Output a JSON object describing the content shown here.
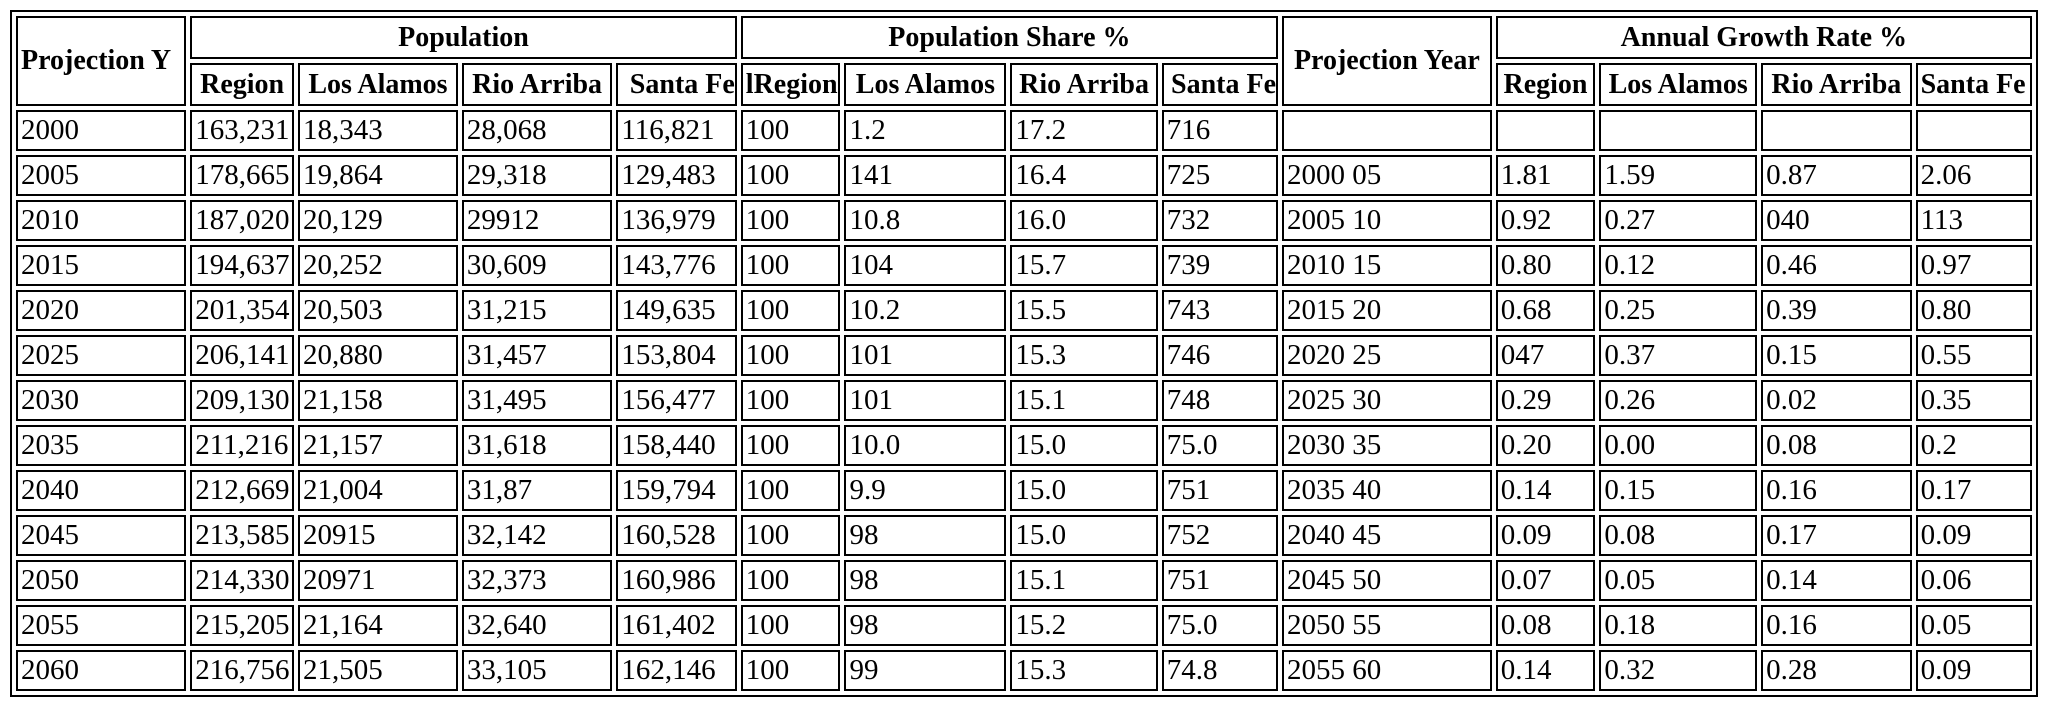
{
  "table": {
    "group_headers": {
      "projection_year_left": "Projection Y",
      "population": "Population",
      "population_share": "Population Share %",
      "projection_year_right": "Projection Year",
      "annual_growth": "Annual Growth Rate %"
    },
    "sub_headers": {
      "population": [
        "Region",
        "Los Alamos",
        "Rio Arriba",
        "Santa Fe"
      ],
      "population_share": [
        "lRegion",
        "Los Alamos",
        "Rio Arriba",
        "Santa Fe"
      ],
      "annual_growth": [
        "Region",
        "Los Alamos",
        "Rio Arriba",
        "Santa Fe"
      ]
    },
    "rows": [
      [
        "2000",
        "163,231",
        "18,343",
        "28,068",
        "116,821",
        "100",
        "1.2",
        "17.2",
        "716",
        "",
        "",
        "",
        "",
        ""
      ],
      [
        "2005",
        "178,665",
        "19,864",
        "29,318",
        "129,483",
        "100",
        "141",
        "16.4",
        "725",
        "2000 05",
        "1.81",
        "1.59",
        "0.87",
        "2.06"
      ],
      [
        "2010",
        "187,020",
        "20,129",
        "29912",
        "136,979",
        "100",
        "10.8",
        "16.0",
        "732",
        "2005 10",
        "0.92",
        "0.27",
        "040",
        "113"
      ],
      [
        "2015",
        "194,637",
        "20,252",
        "30,609",
        "143,776",
        "100",
        "104",
        "15.7",
        "739",
        "2010 15",
        "0.80",
        "0.12",
        "0.46",
        "0.97"
      ],
      [
        "2020",
        "201,354",
        "20,503",
        "31,215",
        "149,635",
        "100",
        "10.2",
        "15.5",
        "743",
        "2015 20",
        "0.68",
        "0.25",
        "0.39",
        "0.80"
      ],
      [
        "2025",
        "206,141",
        "20,880",
        "31,457",
        "153,804",
        "100",
        "101",
        "15.3",
        "746",
        "2020 25",
        "047",
        "0.37",
        "0.15",
        "0.55"
      ],
      [
        "2030",
        "209,130",
        "21,158",
        "31,495",
        "156,477",
        "100",
        "101",
        "15.1",
        "748",
        "2025 30",
        "0.29",
        "0.26",
        "0.02",
        "0.35"
      ],
      [
        "2035",
        "211,216",
        "21,157",
        "31,618",
        "158,440",
        "100",
        "10.0",
        "15.0",
        "75.0",
        "2030 35",
        "0.20",
        "0.00",
        "0.08",
        "0.2"
      ],
      [
        "2040",
        "212,669",
        "21,004",
        "31,87",
        "159,794",
        "100",
        "9.9",
        "15.0",
        "751",
        "2035 40",
        "0.14",
        "0.15",
        "0.16",
        "0.17"
      ],
      [
        "2045",
        "213,585",
        "20915",
        "32,142",
        "160,528",
        "100",
        "98",
        "15.0",
        "752",
        "2040 45",
        "0.09",
        "0.08",
        "0.17",
        "0.09"
      ],
      [
        "2050",
        "214,330",
        "20971",
        "32,373",
        "160,986",
        "100",
        "98",
        "15.1",
        "751",
        "2045 50",
        "0.07",
        "0.05",
        "0.14",
        "0.06"
      ],
      [
        "2055",
        "215,205",
        "21,164",
        "32,640",
        "161,402",
        "100",
        "98",
        "15.2",
        "75.0",
        "2050 55",
        "0.08",
        "0.18",
        "0.16",
        "0.05"
      ],
      [
        "2060",
        "216,756",
        "21,505",
        "33,105",
        "162,146",
        "100",
        "99",
        "15.3",
        "74.8",
        "2055 60",
        "0.14",
        "0.32",
        "0.28",
        "0.09"
      ]
    ]
  }
}
